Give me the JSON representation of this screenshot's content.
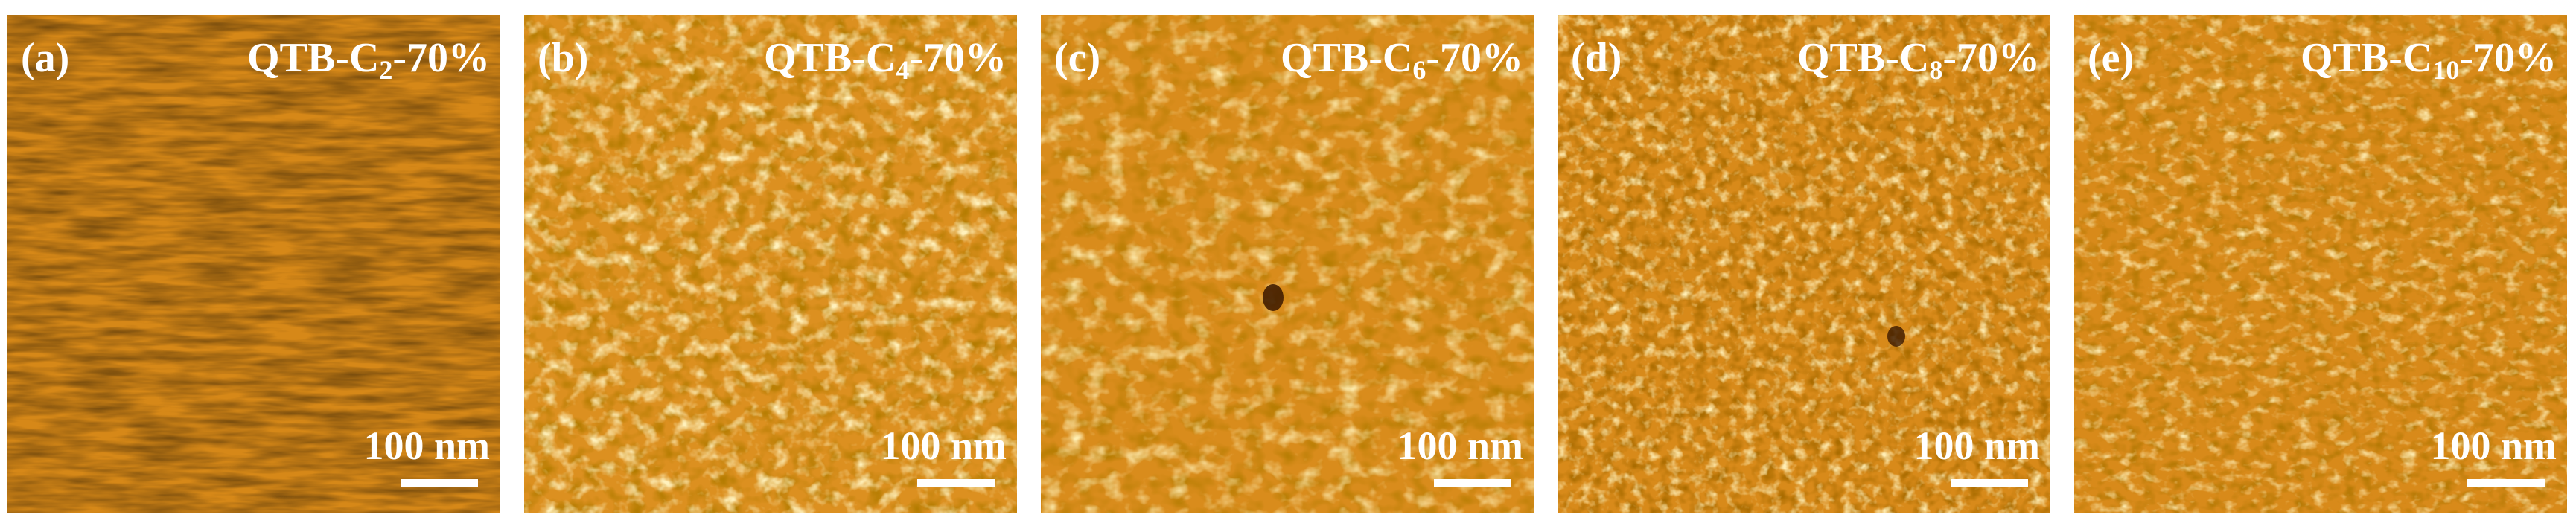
{
  "panels": [
    {
      "letter": "(a)",
      "name_prefix": "QTB-C",
      "name_sub": "2",
      "name_suffix": "-70%",
      "scale_label": "100 nm"
    },
    {
      "letter": "(b)",
      "name_prefix": "QTB-C",
      "name_sub": "4",
      "name_suffix": "-70%",
      "scale_label": "100 nm"
    },
    {
      "letter": "(c)",
      "name_prefix": "QTB-C",
      "name_sub": "6",
      "name_suffix": "-70%",
      "scale_label": "100 nm"
    },
    {
      "letter": "(d)",
      "name_prefix": "QTB-C",
      "name_sub": "8",
      "name_suffix": "-70%",
      "scale_label": "100 nm"
    },
    {
      "letter": "(e)",
      "name_prefix": "QTB-C",
      "name_sub": "10",
      "name_suffix": "-70%",
      "scale_label": "100 nm"
    }
  ],
  "colors": {
    "base": "#d88a18",
    "dark": "#7a3a00",
    "light": "#f8d870",
    "text": "#ffffff"
  }
}
